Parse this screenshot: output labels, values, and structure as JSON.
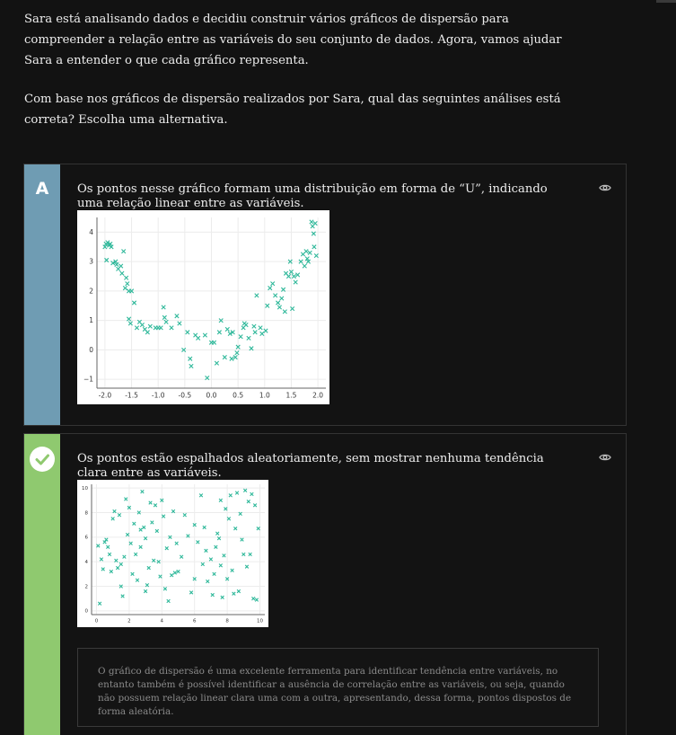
{
  "question": {
    "paragraph1": "Sara está analisando dados e decidiu construir vários gráficos de dispersão para compreender a relação entre as variáveis do seu conjunto de dados. Agora, vamos ajudar Sara a entender o que cada gráfico representa.",
    "paragraph2": "Com base nos gráficos de dispersão realizados por Sara, qual das seguintes análises está correta? Escolha uma alternativa."
  },
  "options": [
    {
      "letter": "A",
      "text": "Os pontos nesse gráfico formam uma distribuição em forma de “U”, indicando uma relação linear entre as variáveis.",
      "side_color": "#6f9cb3",
      "icon": "eye-icon"
    },
    {
      "letter": "",
      "status": "correct",
      "text": "Os pontos estão espalhados aleatoriamente, sem mostrar nenhuma tendência clara entre as variáveis.",
      "side_color": "#8fc96f",
      "icon": "eye-icon",
      "explanation": "O gráfico de dispersão é uma excelente ferramenta para identificar tendência entre variáveis, no entanto também é possível identificar a ausência de correlação entre as variáveis, ou seja, quando não possuem relação linear clara uma com a outra, apresentando, dessa forma, pontos dispostos de forma aleatória."
    }
  ],
  "chart_data": [
    {
      "type": "scatter",
      "marker": "x",
      "color": "#2fb89a",
      "xlim": [
        -2.15,
        2.15
      ],
      "ylim": [
        -1.3,
        4.5
      ],
      "xticks": [
        "-2.0",
        "-1.5",
        "-1.0",
        "-0.5",
        "0.0",
        "0.5",
        "1.0",
        "1.5",
        "2.0"
      ],
      "xtick_values": [
        -2.0,
        -1.5,
        -1.0,
        -0.5,
        0.0,
        0.5,
        1.0,
        1.5,
        2.0
      ],
      "yticks": [
        "−1",
        "0",
        "1",
        "2",
        "3",
        "4"
      ],
      "ytick_values": [
        -1,
        0,
        1,
        2,
        3,
        4
      ],
      "grid": true,
      "points": [
        [
          -2.0,
          3.5
        ],
        [
          -1.98,
          3.6
        ],
        [
          -1.95,
          3.65
        ],
        [
          -1.92,
          3.55
        ],
        [
          -1.9,
          3.6
        ],
        [
          -1.88,
          3.5
        ],
        [
          -1.97,
          3.05
        ],
        [
          -1.85,
          2.95
        ],
        [
          -1.8,
          3.0
        ],
        [
          -1.78,
          2.9
        ],
        [
          -1.75,
          2.75
        ],
        [
          -1.7,
          2.85
        ],
        [
          -1.65,
          3.35
        ],
        [
          -1.68,
          2.6
        ],
        [
          -1.6,
          2.45
        ],
        [
          -1.62,
          2.1
        ],
        [
          -1.58,
          2.25
        ],
        [
          -1.55,
          2.0
        ],
        [
          -1.5,
          2.0
        ],
        [
          -1.45,
          1.6
        ],
        [
          -1.55,
          1.05
        ],
        [
          -1.52,
          0.9
        ],
        [
          -1.4,
          0.75
        ],
        [
          -1.35,
          0.95
        ],
        [
          -1.3,
          0.85
        ],
        [
          -1.25,
          0.7
        ],
        [
          -1.2,
          0.6
        ],
        [
          -1.15,
          0.8
        ],
        [
          -1.05,
          0.75
        ],
        [
          -1.0,
          0.75
        ],
        [
          -0.95,
          0.75
        ],
        [
          -0.9,
          1.45
        ],
        [
          -0.88,
          1.1
        ],
        [
          -0.85,
          0.95
        ],
        [
          -0.75,
          0.75
        ],
        [
          -0.65,
          1.15
        ],
        [
          -0.6,
          0.9
        ],
        [
          -0.52,
          0.0
        ],
        [
          -0.45,
          0.6
        ],
        [
          -0.4,
          -0.3
        ],
        [
          -0.38,
          -0.55
        ],
        [
          -0.3,
          0.5
        ],
        [
          -0.25,
          0.4
        ],
        [
          -0.12,
          0.5
        ],
        [
          -0.08,
          -0.95
        ],
        [
          0.0,
          0.25
        ],
        [
          0.05,
          0.25
        ],
        [
          0.1,
          -0.45
        ],
        [
          0.15,
          0.6
        ],
        [
          0.18,
          1.0
        ],
        [
          0.25,
          -0.25
        ],
        [
          0.3,
          0.7
        ],
        [
          0.35,
          0.55
        ],
        [
          0.38,
          -0.3
        ],
        [
          0.45,
          -0.25
        ],
        [
          0.48,
          -0.1
        ],
        [
          0.4,
          0.6
        ],
        [
          0.5,
          0.1
        ],
        [
          0.55,
          0.45
        ],
        [
          0.6,
          0.75
        ],
        [
          0.62,
          0.9
        ],
        [
          0.65,
          0.85
        ],
        [
          0.7,
          0.4
        ],
        [
          0.75,
          0.05
        ],
        [
          0.8,
          0.8
        ],
        [
          0.82,
          0.6
        ],
        [
          0.85,
          1.85
        ],
        [
          0.92,
          0.75
        ],
        [
          0.95,
          0.55
        ],
        [
          1.02,
          0.65
        ],
        [
          1.05,
          1.5
        ],
        [
          1.1,
          2.1
        ],
        [
          1.15,
          2.25
        ],
        [
          1.2,
          1.85
        ],
        [
          1.25,
          1.6
        ],
        [
          1.28,
          1.45
        ],
        [
          1.32,
          1.75
        ],
        [
          1.35,
          2.05
        ],
        [
          1.38,
          1.3
        ],
        [
          1.4,
          2.6
        ],
        [
          1.45,
          2.5
        ],
        [
          1.48,
          3.0
        ],
        [
          1.5,
          2.65
        ],
        [
          1.52,
          1.4
        ],
        [
          1.55,
          2.5
        ],
        [
          1.58,
          2.3
        ],
        [
          1.62,
          2.55
        ],
        [
          1.68,
          3.0
        ],
        [
          1.72,
          3.25
        ],
        [
          1.75,
          2.85
        ],
        [
          1.78,
          3.35
        ],
        [
          1.8,
          3.1
        ],
        [
          1.82,
          3.0
        ],
        [
          1.85,
          3.3
        ],
        [
          1.88,
          4.35
        ],
        [
          1.9,
          4.2
        ],
        [
          1.92,
          3.95
        ],
        [
          1.93,
          3.5
        ],
        [
          1.95,
          4.3
        ],
        [
          1.97,
          3.2
        ]
      ]
    },
    {
      "type": "scatter",
      "marker": "x",
      "color": "#2fb89a",
      "xlim": [
        -0.3,
        10.3
      ],
      "ylim": [
        -0.3,
        10.3
      ],
      "xticks": [
        "0",
        "2",
        "4",
        "6",
        "8",
        "10"
      ],
      "xtick_values": [
        0,
        2,
        4,
        6,
        8,
        10
      ],
      "yticks": [
        "0",
        "2",
        "4",
        "6",
        "8",
        "10"
      ],
      "ytick_values": [
        0,
        2,
        4,
        6,
        8,
        10
      ],
      "grid": true,
      "points": [
        [
          0.1,
          5.3
        ],
        [
          0.2,
          0.6
        ],
        [
          0.3,
          4.2
        ],
        [
          0.4,
          3.4
        ],
        [
          0.5,
          5.6
        ],
        [
          0.6,
          5.8
        ],
        [
          0.7,
          5.2
        ],
        [
          0.8,
          4.6
        ],
        [
          0.9,
          3.2
        ],
        [
          1.0,
          7.5
        ],
        [
          1.1,
          8.1
        ],
        [
          1.2,
          4.1
        ],
        [
          1.3,
          3.5
        ],
        [
          1.4,
          7.8
        ],
        [
          1.5,
          3.8
        ],
        [
          1.6,
          1.2
        ],
        [
          1.7,
          4.4
        ],
        [
          1.8,
          9.1
        ],
        [
          1.9,
          6.2
        ],
        [
          2.0,
          8.4
        ],
        [
          2.1,
          5.5
        ],
        [
          2.2,
          3.0
        ],
        [
          2.3,
          7.1
        ],
        [
          2.4,
          4.6
        ],
        [
          2.5,
          2.5
        ],
        [
          2.6,
          8.0
        ],
        [
          2.7,
          5.2
        ],
        [
          2.8,
          9.7
        ],
        [
          2.9,
          6.8
        ],
        [
          3.0,
          5.9
        ],
        [
          3.1,
          2.1
        ],
        [
          3.2,
          3.5
        ],
        [
          3.3,
          8.8
        ],
        [
          3.4,
          7.2
        ],
        [
          3.5,
          4.1
        ],
        [
          3.6,
          8.6
        ],
        [
          3.7,
          6.5
        ],
        [
          3.8,
          4.0
        ],
        [
          3.9,
          2.8
        ],
        [
          4.0,
          9.0
        ],
        [
          4.1,
          7.7
        ],
        [
          4.2,
          1.8
        ],
        [
          4.3,
          5.1
        ],
        [
          4.4,
          0.8
        ],
        [
          4.5,
          6.0
        ],
        [
          4.6,
          2.9
        ],
        [
          4.7,
          8.1
        ],
        [
          4.8,
          3.1
        ],
        [
          4.9,
          5.5
        ],
        [
          5.0,
          3.2
        ],
        [
          5.2,
          4.4
        ],
        [
          5.4,
          7.8
        ],
        [
          5.6,
          6.1
        ],
        [
          5.8,
          1.5
        ],
        [
          6.0,
          2.6
        ],
        [
          6.2,
          5.6
        ],
        [
          6.4,
          9.4
        ],
        [
          6.5,
          3.8
        ],
        [
          6.6,
          6.8
        ],
        [
          6.8,
          2.4
        ],
        [
          7.0,
          4.2
        ],
        [
          7.1,
          1.3
        ],
        [
          7.2,
          3.0
        ],
        [
          7.3,
          5.2
        ],
        [
          7.4,
          6.3
        ],
        [
          7.5,
          5.9
        ],
        [
          7.6,
          3.7
        ],
        [
          7.7,
          1.1
        ],
        [
          7.8,
          4.5
        ],
        [
          7.9,
          8.3
        ],
        [
          8.0,
          2.6
        ],
        [
          8.1,
          7.5
        ],
        [
          8.2,
          9.4
        ],
        [
          8.3,
          3.3
        ],
        [
          8.4,
          1.4
        ],
        [
          8.5,
          6.7
        ],
        [
          8.6,
          9.6
        ],
        [
          8.7,
          1.6
        ],
        [
          8.8,
          7.9
        ],
        [
          8.9,
          5.8
        ],
        [
          9.0,
          4.6
        ],
        [
          9.1,
          9.8
        ],
        [
          9.2,
          3.6
        ],
        [
          9.3,
          8.9
        ],
        [
          9.4,
          4.6
        ],
        [
          9.5,
          9.5
        ],
        [
          9.6,
          1.0
        ],
        [
          9.7,
          8.6
        ],
        [
          9.8,
          0.9
        ],
        [
          9.9,
          6.7
        ],
        [
          1.5,
          2.0
        ],
        [
          6.0,
          7.0
        ],
        [
          3.0,
          1.6
        ],
        [
          2.7,
          6.6
        ],
        [
          6.7,
          4.9
        ],
        [
          7.6,
          9.0
        ]
      ]
    }
  ]
}
